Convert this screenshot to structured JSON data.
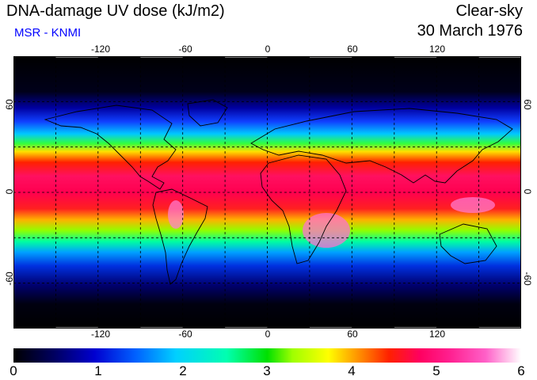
{
  "header": {
    "title": "DNA-damage UV dose (kJ/m2)",
    "subtitle": "MSR - KNMI",
    "condition": "Clear-sky",
    "date": "30 March 1976"
  },
  "map": {
    "lon_ticks": [
      "-120",
      "-60",
      "0",
      "60",
      "120"
    ],
    "lat_ticks": [
      "60",
      "0",
      "-60"
    ],
    "lon_range": [
      -180,
      180
    ],
    "lat_range": [
      -90,
      90
    ],
    "grid_interval_deg": 30,
    "projection": "equirectangular"
  },
  "colorbar": {
    "labels": [
      "0",
      "1",
      "2",
      "3",
      "4",
      "5",
      "6"
    ],
    "min": 0,
    "max": 6,
    "colors": [
      "#000000",
      "#0000d0",
      "#00d0ff",
      "#00e000",
      "#ffff00",
      "#ff2000",
      "#ff0060",
      "#ffffff"
    ]
  }
}
